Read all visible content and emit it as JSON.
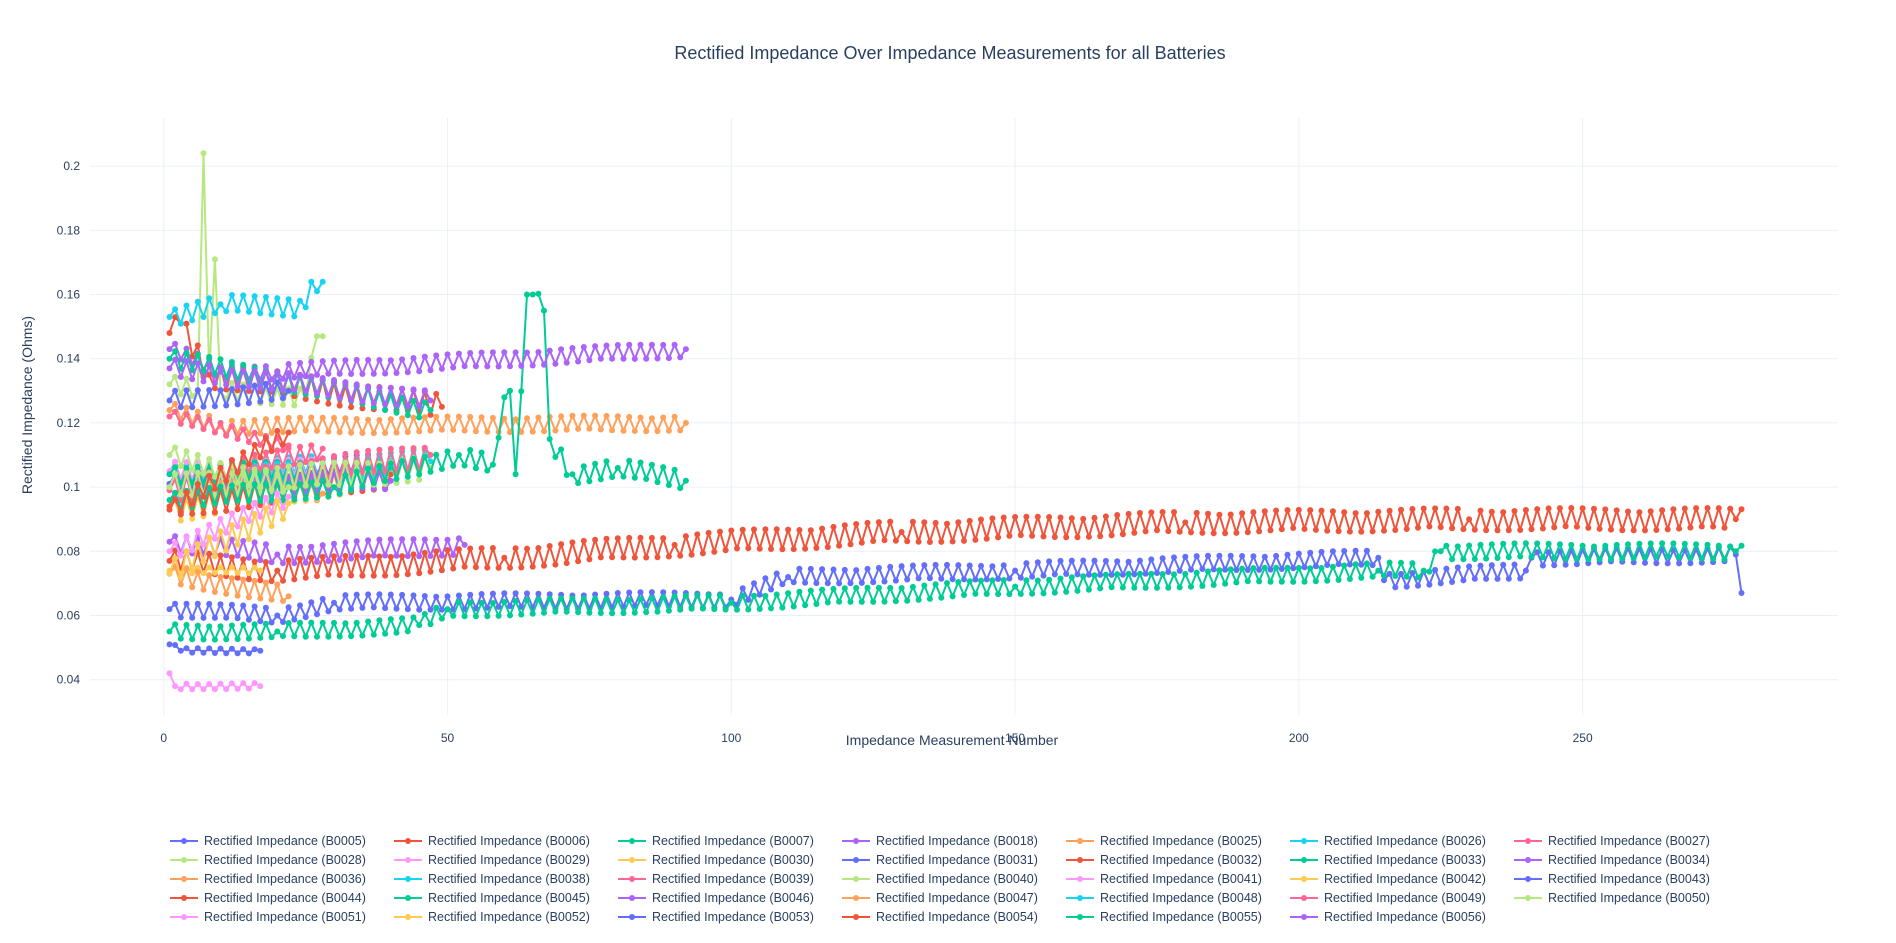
{
  "chart_data": {
    "type": "line",
    "title": "Rectified Impedance Over Impedance Measurements for all Batteries",
    "xlabel": "Impedance Measurement Number",
    "ylabel": "Rectified Impedance (Ohms)",
    "xlim": [
      -13,
      295
    ],
    "ylim": [
      0.029,
      0.215
    ],
    "x_ticks": [
      0,
      50,
      100,
      150,
      200,
      250
    ],
    "y_ticks": [
      0.04,
      0.06,
      0.08,
      0.1,
      0.12,
      0.14,
      0.16,
      0.18,
      0.2
    ],
    "y_tick_labels": [
      "0.04",
      "0.06",
      "0.08",
      "0.1",
      "0.12",
      "0.14",
      "0.16",
      "0.18",
      "0.2"
    ],
    "x_tick_labels": [
      "0",
      "50",
      "100",
      "150",
      "200",
      "250"
    ],
    "grid": true,
    "legend_position": "bottom",
    "series": [
      {
        "name": "Rectified Impedance (B0005)",
        "color": "#636efa",
        "n": 278,
        "start": 0.062,
        "end": 0.08,
        "amp": 0.0025,
        "last": 0.067,
        "knots": [
          [
            1,
            0.062
          ],
          [
            20,
            0.06
          ],
          [
            30,
            0.064
          ],
          [
            100,
            0.065
          ],
          [
            110,
            0.072
          ],
          [
            150,
            0.074
          ],
          [
            214,
            0.078
          ],
          [
            215,
            0.071
          ],
          [
            240,
            0.074
          ],
          [
            241,
            0.078
          ],
          [
            277,
            0.079
          ]
        ]
      },
      {
        "name": "Rectified Impedance (B0006)",
        "color": "#EF553B",
        "n": 278,
        "start": 0.077,
        "end": 0.09,
        "amp": 0.0035,
        "knots": [
          [
            1,
            0.077
          ],
          [
            20,
            0.074
          ],
          [
            60,
            0.078
          ],
          [
            90,
            0.082
          ],
          [
            130,
            0.086
          ],
          [
            180,
            0.089
          ],
          [
            230,
            0.09
          ],
          [
            277,
            0.09
          ]
        ]
      },
      {
        "name": "Rectified Impedance (B0007)",
        "color": "#00cc96",
        "n": 278,
        "start": 0.055,
        "end": 0.08,
        "amp": 0.0025,
        "knots": [
          [
            1,
            0.055
          ],
          [
            20,
            0.055
          ],
          [
            45,
            0.057
          ],
          [
            50,
            0.062
          ],
          [
            100,
            0.064
          ],
          [
            150,
            0.069
          ],
          [
            214,
            0.074
          ],
          [
            222,
            0.074
          ],
          [
            225,
            0.08
          ],
          [
            277,
            0.08
          ]
        ]
      },
      {
        "name": "Rectified Impedance (B0018)",
        "color": "#ab63fa",
        "n": 53,
        "start": 0.082,
        "end": 0.082,
        "amp": 0.003,
        "knots": [
          [
            1,
            0.083
          ],
          [
            20,
            0.079
          ],
          [
            53,
            0.082
          ]
        ]
      },
      {
        "name": "Rectified Impedance (B0025)",
        "color": "#FFA15A",
        "n": 28,
        "start": 0.1,
        "end": 0.098,
        "amp": 0.003,
        "knots": [
          [
            1,
            0.1
          ],
          [
            28,
            0.098
          ]
        ]
      },
      {
        "name": "Rectified Impedance (B0026)",
        "color": "#19d3f3",
        "n": 28,
        "start": 0.105,
        "end": 0.108,
        "amp": 0.003,
        "knots": [
          [
            1,
            0.104
          ],
          [
            28,
            0.107
          ]
        ]
      },
      {
        "name": "Rectified Impedance (B0027)",
        "color": "#FF6692",
        "n": 28,
        "start": 0.1,
        "end": 0.112,
        "amp": 0.003,
        "knots": [
          [
            1,
            0.101
          ],
          [
            28,
            0.112
          ]
        ]
      },
      {
        "name": "Rectified Impedance (B0028)",
        "color": "#B6E880",
        "n": 28,
        "start": 0.132,
        "end": 0.147,
        "amp": 0.003,
        "knots": [
          [
            1,
            0.132
          ],
          [
            6,
            0.13
          ],
          [
            7,
            0.204
          ],
          [
            8,
            0.135
          ],
          [
            9,
            0.171
          ],
          [
            10,
            0.13
          ],
          [
            25,
            0.128
          ],
          [
            27,
            0.147
          ],
          [
            28,
            0.147
          ]
        ]
      },
      {
        "name": "Rectified Impedance (B0029)",
        "color": "#FF97FF",
        "n": 40,
        "start": 0.104,
        "end": 0.106,
        "amp": 0.003,
        "knots": [
          [
            1,
            0.105
          ],
          [
            40,
            0.106
          ]
        ]
      },
      {
        "name": "Rectified Impedance (B0030)",
        "color": "#FECB52",
        "n": 40,
        "start": 0.092,
        "end": 0.104,
        "amp": 0.004,
        "knots": [
          [
            1,
            0.093
          ],
          [
            40,
            0.104
          ]
        ]
      },
      {
        "name": "Rectified Impedance (B0031)",
        "color": "#636efa",
        "n": 40,
        "start": 0.101,
        "end": 0.108,
        "amp": 0.003,
        "knots": [
          [
            1,
            0.101
          ],
          [
            40,
            0.108
          ]
        ]
      },
      {
        "name": "Rectified Impedance (B0032)",
        "color": "#EF553B",
        "n": 40,
        "start": 0.094,
        "end": 0.104,
        "amp": 0.004,
        "knots": [
          [
            1,
            0.094
          ],
          [
            40,
            0.104
          ]
        ]
      },
      {
        "name": "Rectified Impedance (B0033)",
        "color": "#00cc96",
        "n": 40,
        "start": 0.105,
        "end": 0.106,
        "amp": 0.003,
        "knots": [
          [
            1,
            0.104
          ],
          [
            40,
            0.106
          ]
        ]
      },
      {
        "name": "Rectified Impedance (B0034)",
        "color": "#ab63fa",
        "n": 40,
        "start": 0.1,
        "end": 0.102,
        "amp": 0.003,
        "knots": [
          [
            1,
            0.1
          ],
          [
            40,
            0.102
          ]
        ]
      },
      {
        "name": "Rectified Impedance (B0036)",
        "color": "#FFA15A",
        "n": 92,
        "start": 0.123,
        "end": 0.121,
        "amp": 0.0025,
        "knots": [
          [
            1,
            0.124
          ],
          [
            10,
            0.119
          ],
          [
            92,
            0.12
          ]
        ]
      },
      {
        "name": "Rectified Impedance (B0038)",
        "color": "#19d3f3",
        "n": 47,
        "start": 0.1,
        "end": 0.108,
        "amp": 0.004,
        "knots": [
          [
            1,
            0.1
          ],
          [
            47,
            0.108
          ]
        ]
      },
      {
        "name": "Rectified Impedance (B0039)",
        "color": "#FF6692",
        "n": 47,
        "start": 0.1,
        "end": 0.11,
        "amp": 0.004,
        "knots": [
          [
            1,
            0.099
          ],
          [
            47,
            0.11
          ]
        ]
      },
      {
        "name": "Rectified Impedance (B0040)",
        "color": "#B6E880",
        "n": 47,
        "start": 0.1,
        "end": 0.106,
        "amp": 0.004,
        "knots": [
          [
            1,
            0.1
          ],
          [
            47,
            0.106
          ]
        ]
      },
      {
        "name": "Rectified Impedance (B0041)",
        "color": "#FF97FF",
        "n": 17,
        "start": 0.042,
        "end": 0.038,
        "amp": 0.001,
        "knots": [
          [
            1,
            0.042
          ],
          [
            2,
            0.038
          ],
          [
            17,
            0.038
          ]
        ]
      },
      {
        "name": "Rectified Impedance (B0042)",
        "color": "#FECB52",
        "n": 17,
        "start": 0.074,
        "end": 0.074,
        "amp": 0.001,
        "knots": [
          [
            1,
            0.074
          ],
          [
            17,
            0.074
          ]
        ]
      },
      {
        "name": "Rectified Impedance (B0043)",
        "color": "#636efa",
        "n": 17,
        "start": 0.051,
        "end": 0.049,
        "amp": 0.0008,
        "knots": [
          [
            1,
            0.051
          ],
          [
            3,
            0.049
          ],
          [
            17,
            0.049
          ]
        ]
      },
      {
        "name": "Rectified Impedance (B0044)",
        "color": "#EF553B",
        "n": 49,
        "start": 0.148,
        "end": 0.125,
        "amp": 0.004,
        "knots": [
          [
            1,
            0.148
          ],
          [
            3,
            0.151
          ],
          [
            8,
            0.135
          ],
          [
            49,
            0.125
          ]
        ]
      },
      {
        "name": "Rectified Impedance (B0045)",
        "color": "#00cc96",
        "n": 92,
        "start": 0.096,
        "end": 0.103,
        "amp": 0.003,
        "knots": [
          [
            1,
            0.096
          ],
          [
            30,
            0.1
          ],
          [
            52,
            0.11
          ],
          [
            58,
            0.107
          ],
          [
            60,
            0.128
          ],
          [
            61,
            0.13
          ],
          [
            62,
            0.104
          ],
          [
            64,
            0.16
          ],
          [
            65,
            0.16
          ],
          [
            67,
            0.155
          ],
          [
            68,
            0.115
          ],
          [
            72,
            0.104
          ],
          [
            80,
            0.106
          ],
          [
            92,
            0.102
          ]
        ]
      },
      {
        "name": "Rectified Impedance (B0046)",
        "color": "#ab63fa",
        "n": 92,
        "start": 0.143,
        "end": 0.143,
        "amp": 0.0025,
        "knots": [
          [
            1,
            0.143
          ],
          [
            10,
            0.136
          ],
          [
            20,
            0.136
          ],
          [
            92,
            0.143
          ]
        ]
      },
      {
        "name": "Rectified Impedance (B0047)",
        "color": "#FFA15A",
        "n": 22,
        "start": 0.075,
        "end": 0.067,
        "amp": 0.003,
        "knots": [
          [
            1,
            0.073
          ],
          [
            22,
            0.066
          ]
        ]
      },
      {
        "name": "Rectified Impedance (B0048)",
        "color": "#19d3f3",
        "n": 28,
        "start": 0.153,
        "end": 0.164,
        "amp": 0.003,
        "knots": [
          [
            1,
            0.153
          ],
          [
            10,
            0.157
          ],
          [
            25,
            0.156
          ],
          [
            26,
            0.164
          ],
          [
            28,
            0.164
          ]
        ]
      },
      {
        "name": "Rectified Impedance (B0049)",
        "color": "#FF6692",
        "n": 22,
        "start": 0.122,
        "end": 0.113,
        "amp": 0.002,
        "knots": [
          [
            1,
            0.122
          ],
          [
            22,
            0.113
          ]
        ]
      },
      {
        "name": "Rectified Impedance (B0050)",
        "color": "#B6E880",
        "n": 22,
        "start": 0.11,
        "end": 0.1,
        "amp": 0.003,
        "knots": [
          [
            1,
            0.11
          ],
          [
            22,
            0.1
          ]
        ]
      },
      {
        "name": "Rectified Impedance (B0051)",
        "color": "#FF97FF",
        "n": 22,
        "start": 0.08,
        "end": 0.097,
        "amp": 0.003,
        "knots": [
          [
            1,
            0.08
          ],
          [
            22,
            0.097
          ]
        ]
      },
      {
        "name": "Rectified Impedance (B0052)",
        "color": "#FECB52",
        "n": 22,
        "start": 0.073,
        "end": 0.095,
        "amp": 0.004,
        "knots": [
          [
            1,
            0.073
          ],
          [
            22,
            0.095
          ]
        ]
      },
      {
        "name": "Rectified Impedance (B0053)",
        "color": "#636efa",
        "n": 22,
        "start": 0.127,
        "end": 0.13,
        "amp": 0.003,
        "knots": [
          [
            1,
            0.127
          ],
          [
            22,
            0.13
          ]
        ]
      },
      {
        "name": "Rectified Impedance (B0054)",
        "color": "#EF553B",
        "n": 22,
        "start": 0.093,
        "end": 0.117,
        "amp": 0.003,
        "knots": [
          [
            1,
            0.093
          ],
          [
            22,
            0.117
          ]
        ]
      },
      {
        "name": "Rectified Impedance (B0055)",
        "color": "#00cc96",
        "n": 47,
        "start": 0.14,
        "end": 0.124,
        "amp": 0.003,
        "knots": [
          [
            1,
            0.14
          ],
          [
            47,
            0.124
          ]
        ]
      },
      {
        "name": "Rectified Impedance (B0056)",
        "color": "#ab63fa",
        "n": 47,
        "start": 0.137,
        "end": 0.127,
        "amp": 0.003,
        "knots": [
          [
            1,
            0.137
          ],
          [
            47,
            0.127
          ]
        ]
      }
    ]
  }
}
